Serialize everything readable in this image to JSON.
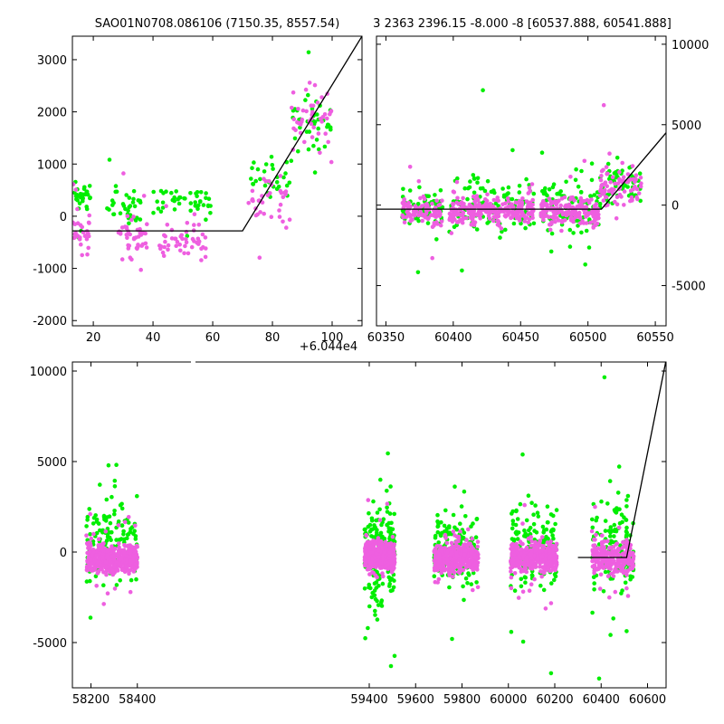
{
  "chart_data": [
    {
      "id": "top-left",
      "type": "scatter",
      "title": "SAO01N0708.086106 (7150.35, 8557.54)",
      "x_offset_label": "+6.044e4",
      "xlim": [
        13,
        110
      ],
      "ylim": [
        -2100,
        3450
      ],
      "xticks": [
        20,
        40,
        60,
        80,
        100
      ],
      "yticks": [
        -2000,
        -1000,
        0,
        1000,
        2000,
        3000
      ],
      "yaxis_side": "left",
      "colors": {
        "a": "#00ee00",
        "b": "#ee5fe0"
      },
      "model_line": {
        "x": [
          13,
          70,
          110
        ],
        "y": [
          -280,
          -280,
          3450
        ]
      },
      "series": [
        {
          "color_key": "a",
          "clusters": [
            {
              "x": [
                13,
                19
              ],
              "y": [
                0,
                750
              ],
              "n": 30
            },
            {
              "x": [
                24,
                36
              ],
              "y": [
                -200,
                600
              ],
              "n": 35
            },
            {
              "x": [
                40,
                60
              ],
              "y": [
                -150,
                700
              ],
              "n": 45
            },
            {
              "x": [
                72,
                86
              ],
              "y": [
                300,
                1200
              ],
              "n": 30
            },
            {
              "x": [
                86,
                100
              ],
              "y": [
                1000,
                2600
              ],
              "n": 40
            }
          ]
        },
        {
          "color_key": "b",
          "clusters": [
            {
              "x": [
                13,
                19
              ],
              "y": [
                -700,
                100
              ],
              "n": 30
            },
            {
              "x": [
                28,
                38
              ],
              "y": [
                -900,
                100
              ],
              "n": 45
            },
            {
              "x": [
                42,
                58
              ],
              "y": [
                -900,
                0
              ],
              "n": 50
            },
            {
              "x": [
                72,
                86
              ],
              "y": [
                -300,
                900
              ],
              "n": 35
            },
            {
              "x": [
                86,
                100
              ],
              "y": [
                900,
                2700
              ],
              "n": 45
            }
          ]
        }
      ]
    },
    {
      "id": "top-right",
      "type": "scatter",
      "title": "3 2363 2396.15 -8.000 -8 [60537.888, 60541.888]",
      "xlim": [
        60343,
        60558
      ],
      "ylim": [
        -7500,
        10500
      ],
      "xticks": [
        60350,
        60400,
        60450,
        60500,
        60550
      ],
      "yticks": [
        -5000,
        0,
        5000,
        10000
      ],
      "yaxis_side": "right",
      "colors": {
        "a": "#00ee00",
        "b": "#ee5fe0"
      },
      "model_line": {
        "x": [
          60343,
          60510,
          60558
        ],
        "y": [
          -250,
          -250,
          4500
        ]
      },
      "series": [
        {
          "color_key": "a",
          "clusters": [
            {
              "x": [
                60362,
                60392
              ],
              "y": [
                -1800,
                1200
              ],
              "n": 70
            },
            {
              "x": [
                60397,
                60460
              ],
              "y": [
                -2200,
                2200
              ],
              "n": 130
            },
            {
              "x": [
                60465,
                60508
              ],
              "y": [
                -2000,
                2000
              ],
              "n": 100
            },
            {
              "x": [
                60508,
                60540
              ],
              "y": [
                -600,
                3200
              ],
              "n": 60
            }
          ]
        },
        {
          "color_key": "b",
          "clusters": [
            {
              "x": [
                60362,
                60392
              ],
              "y": [
                -1600,
                800
              ],
              "n": 90
            },
            {
              "x": [
                60397,
                60460
              ],
              "y": [
                -1300,
                700
              ],
              "n": 260
            },
            {
              "x": [
                60465,
                60508
              ],
              "y": [
                -1500,
                700
              ],
              "n": 180
            },
            {
              "x": [
                60508,
                60540
              ],
              "y": [
                -500,
                2800
              ],
              "n": 80
            }
          ]
        }
      ]
    },
    {
      "id": "bottom",
      "type": "scatter",
      "title": "",
      "xlim": [
        58120,
        60680
      ],
      "ylim": [
        -7500,
        10500
      ],
      "xticks": [
        58200,
        58400,
        59400,
        59600,
        59800,
        60000,
        60200,
        60400,
        60600
      ],
      "yticks": [
        -5000,
        0,
        5000,
        10000
      ],
      "yaxis_side": "left",
      "colors": {
        "a": "#00ee00",
        "b": "#ee5fe0"
      },
      "model_line": {
        "x": [
          60300,
          60510,
          60680
        ],
        "y": [
          -300,
          -300,
          10600
        ]
      },
      "series": [
        {
          "color_key": "a",
          "clusters": [
            {
              "x": [
                58180,
                58400
              ],
              "y": [
                -2500,
                3500
              ],
              "n": 140
            },
            {
              "x": [
                59380,
                59510
              ],
              "y": [
                -3500,
                3500
              ],
              "n": 200
            },
            {
              "x": [
                59680,
                59870
              ],
              "y": [
                -2500,
                3000
              ],
              "n": 150
            },
            {
              "x": [
                60010,
                60210
              ],
              "y": [
                -2500,
                3000
              ],
              "n": 170
            },
            {
              "x": [
                60360,
                60540
              ],
              "y": [
                -3000,
                3500
              ],
              "n": 140
            }
          ]
        },
        {
          "color_key": "b",
          "clusters": [
            {
              "x": [
                58180,
                58400
              ],
              "y": [
                -1400,
                700
              ],
              "n": 420
            },
            {
              "x": [
                59380,
                59510
              ],
              "y": [
                -1200,
                800
              ],
              "n": 420
            },
            {
              "x": [
                59680,
                59870
              ],
              "y": [
                -1300,
                700
              ],
              "n": 380
            },
            {
              "x": [
                60010,
                60210
              ],
              "y": [
                -1300,
                700
              ],
              "n": 400
            },
            {
              "x": [
                60360,
                60540
              ],
              "y": [
                -1500,
                900
              ],
              "n": 220
            }
          ]
        }
      ]
    }
  ]
}
